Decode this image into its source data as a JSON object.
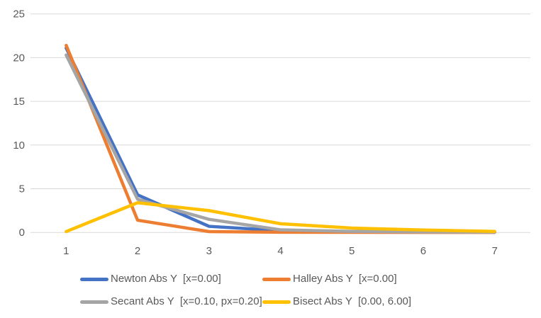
{
  "chart_data": {
    "type": "line",
    "title": "",
    "xlabel": "",
    "ylabel": "",
    "x": [
      1,
      2,
      3,
      4,
      5,
      6,
      7
    ],
    "xticks": [
      "1",
      "2",
      "3",
      "4",
      "5",
      "6",
      "7"
    ],
    "yticks": [
      "0",
      "5",
      "10",
      "15",
      "20",
      "25"
    ],
    "ytick_values": [
      0,
      5,
      10,
      15,
      20,
      25
    ],
    "ylim": [
      0,
      25
    ],
    "grid": true,
    "legend_position": "bottom",
    "series": [
      {
        "name": "Newton Abs Y  [x=0.00]",
        "color": "#4472C4",
        "values": [
          21.1,
          4.3,
          0.7,
          0.2,
          0.1,
          0.05,
          0.03
        ]
      },
      {
        "name": "Halley Abs Y  [x=0.00]",
        "color": "#ED7D31",
        "values": [
          21.4,
          1.4,
          0.1,
          0.03,
          0.02,
          0.01,
          0.01
        ]
      },
      {
        "name": "Secant Abs Y  [x=0.10, px=0.20]",
        "color": "#A5A5A5",
        "values": [
          20.3,
          3.8,
          1.5,
          0.3,
          0.12,
          0.06,
          0.03
        ]
      },
      {
        "name": "Bisect Abs Y  [0.00, 6.00]",
        "color": "#FFC000",
        "values": [
          0.1,
          3.4,
          2.5,
          1.0,
          0.5,
          0.28,
          0.12
        ]
      }
    ],
    "colors": {
      "gridline": "#D9D9D9",
      "axis_text": "#595959",
      "background": "#FFFFFF"
    }
  }
}
